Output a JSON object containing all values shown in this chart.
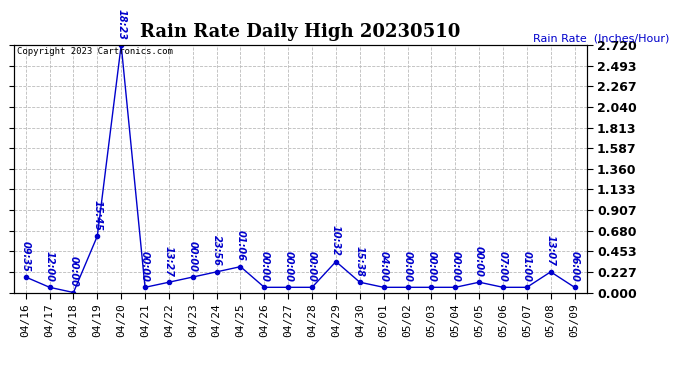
{
  "title": "Rain Rate Daily High 20230510",
  "ylabel": "Rain Rate  (Inches/Hour)",
  "copyright": "Copyright 2023 Cartronics.com",
  "line_color": "#0000cc",
  "background_color": "#ffffff",
  "grid_color": "#bbbbbb",
  "text_color_blue": "#0000cc",
  "text_color_black": "#000000",
  "ylim": [
    0.0,
    2.72
  ],
  "yticks": [
    0.0,
    0.227,
    0.453,
    0.68,
    0.907,
    1.133,
    1.36,
    1.587,
    1.813,
    2.04,
    2.267,
    2.493,
    2.72
  ],
  "x_labels": [
    "04/16",
    "04/17",
    "04/18",
    "04/19",
    "04/20",
    "04/21",
    "04/22",
    "04/23",
    "04/24",
    "04/25",
    "04/26",
    "04/27",
    "04/28",
    "04/29",
    "04/30",
    "05/01",
    "05/02",
    "05/03",
    "05/04",
    "05/05",
    "05/06",
    "05/07",
    "05/08",
    "05/09"
  ],
  "data_x": [
    0,
    1,
    2,
    3,
    4,
    5,
    6,
    7,
    8,
    9,
    10,
    11,
    12,
    13,
    14,
    15,
    16,
    17,
    18,
    19,
    20,
    21,
    22,
    23
  ],
  "data_y": [
    0.17,
    0.057,
    0.0,
    0.62,
    2.72,
    0.057,
    0.113,
    0.17,
    0.227,
    0.284,
    0.057,
    0.057,
    0.057,
    0.34,
    0.113,
    0.057,
    0.057,
    0.057,
    0.057,
    0.113,
    0.057,
    0.057,
    0.227,
    0.057
  ],
  "point_labels": [
    "09:35",
    "12:00",
    "00:00",
    "15:45",
    "18:23",
    "00:00",
    "13:27",
    "00:00",
    "23:56",
    "01:06",
    "00:00",
    "00:00",
    "00:00",
    "10:32",
    "15:38",
    "04:00",
    "00:00",
    "00:00",
    "00:00",
    "00:00",
    "07:00",
    "01:00",
    "13:07",
    "06:00"
  ],
  "marker_size": 3,
  "line_width": 1.0,
  "title_fontsize": 13,
  "tick_labelsize": 8,
  "label_fontsize": 8,
  "annot_fontsize": 7
}
